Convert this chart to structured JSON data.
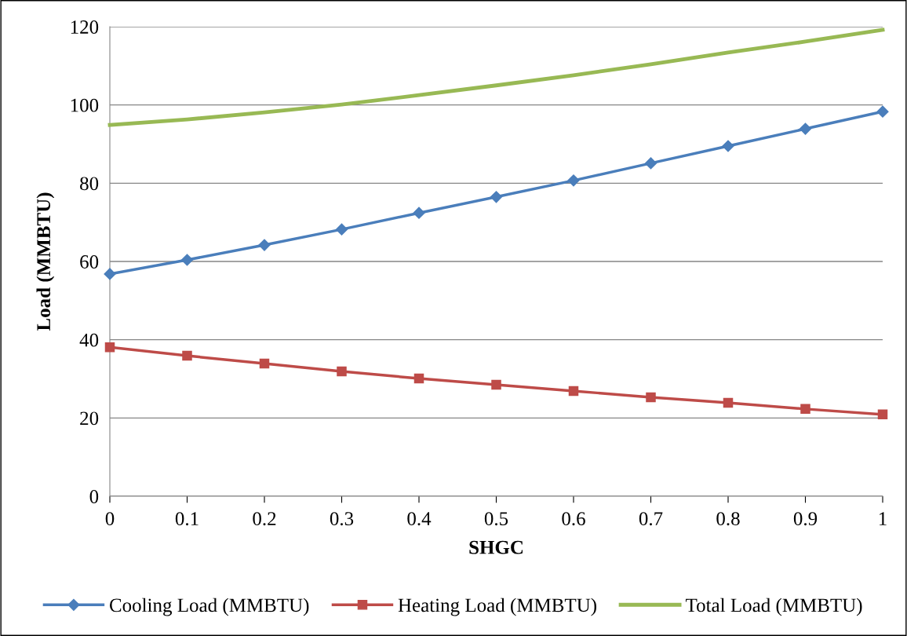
{
  "chart_data": {
    "type": "line",
    "xlabel": "SHGC",
    "ylabel": "Load (MMBTU)",
    "x": [
      0,
      0.1,
      0.2,
      0.3,
      0.4,
      0.5,
      0.6,
      0.7,
      0.8,
      0.9,
      1
    ],
    "series": [
      {
        "name": "Cooling Load (MMBTU)",
        "color": "#4a7ebb",
        "marker": "diamond",
        "values": [
          56.8,
          60.4,
          64.2,
          68.2,
          72.4,
          76.5,
          80.7,
          85.1,
          89.5,
          93.9,
          98.3
        ]
      },
      {
        "name": "Heating Load (MMBTU)",
        "color": "#be4b48",
        "marker": "square",
        "values": [
          38.1,
          35.9,
          33.9,
          31.9,
          30.1,
          28.5,
          26.9,
          25.3,
          23.9,
          22.3,
          20.9
        ]
      },
      {
        "name": "Total Load (MMBTU)",
        "color": "#98b954",
        "marker": "none",
        "values": [
          94.9,
          96.3,
          98.1,
          100.1,
          102.5,
          105.0,
          107.6,
          110.4,
          113.4,
          116.2,
          119.2
        ]
      }
    ],
    "xlim": [
      0,
      1
    ],
    "xticks": [
      0,
      0.1,
      0.2,
      0.3,
      0.4,
      0.5,
      0.6,
      0.7,
      0.8,
      0.9,
      1
    ],
    "ylim": [
      0,
      120
    ],
    "yticks": [
      0,
      20,
      40,
      60,
      80,
      100,
      120
    ],
    "grid": "y",
    "legend": "bottom",
    "line_style": "solid"
  }
}
